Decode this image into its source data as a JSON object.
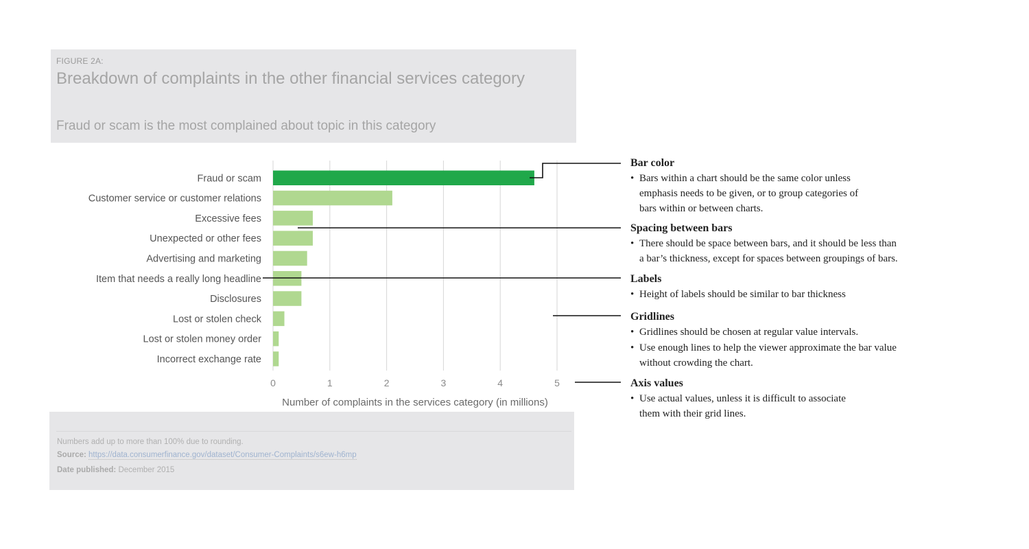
{
  "header": {
    "figure_label": "FIGURE 2A:",
    "title": "Breakdown of complaints in the other financial services category",
    "subtitle": "Fraud or scam is the most complained about topic in this category"
  },
  "chart_data": {
    "type": "bar",
    "orientation": "horizontal",
    "categories": [
      "Fraud or scam",
      "Customer service or customer relations",
      "Excessive fees",
      "Unexpected or other fees",
      "Advertising and marketing",
      "Item that needs a really long headline",
      "Disclosures",
      "Lost or stolen check",
      "Lost or stolen money order",
      "Incorrect exchange rate"
    ],
    "values": [
      4.6,
      2.1,
      0.7,
      0.7,
      0.6,
      0.5,
      0.5,
      0.2,
      0.1,
      0.1
    ],
    "highlight_index": 0,
    "highlight_color": "#20a84a",
    "bar_color": "#b0d890",
    "xlabel": "Number of complaints in the services category (in millions)",
    "ylabel": "",
    "xlim": [
      0,
      5
    ],
    "xticks": [
      "0",
      "1",
      "2",
      "3",
      "4",
      "5"
    ],
    "grid": true
  },
  "annotations": [
    {
      "title": "Bar color",
      "bullets": [
        "Bars within a chart should be the same color unless\nemphasis needs to be given, or to group categories of\nbars within or between charts."
      ]
    },
    {
      "title": "Spacing between bars",
      "bullets": [
        "There should be space between bars, and it should be less than\na bar’s thickness, except for spaces between groupings of bars."
      ]
    },
    {
      "title": "Labels",
      "bullets": [
        "Height of labels should be similar to bar thickness"
      ]
    },
    {
      "title": "Gridlines",
      "bullets": [
        "Gridlines should be chosen at regular value intervals.",
        "Use enough lines to help the viewer approximate the bar value\nwithout crowding the chart."
      ]
    },
    {
      "title": "Axis values",
      "bullets": [
        "Use actual values, unless it is difficult to associate\nthem with their grid lines."
      ]
    }
  ],
  "footer": {
    "note": "Numbers add up to more than 100% due to rounding.",
    "source_label": "Source:",
    "source_url": "https://data.consumerfinance.gov/dataset/Consumer-Complaints/s6ew-h6mp",
    "date_label": "Date published:",
    "date_value": "December 2015"
  }
}
